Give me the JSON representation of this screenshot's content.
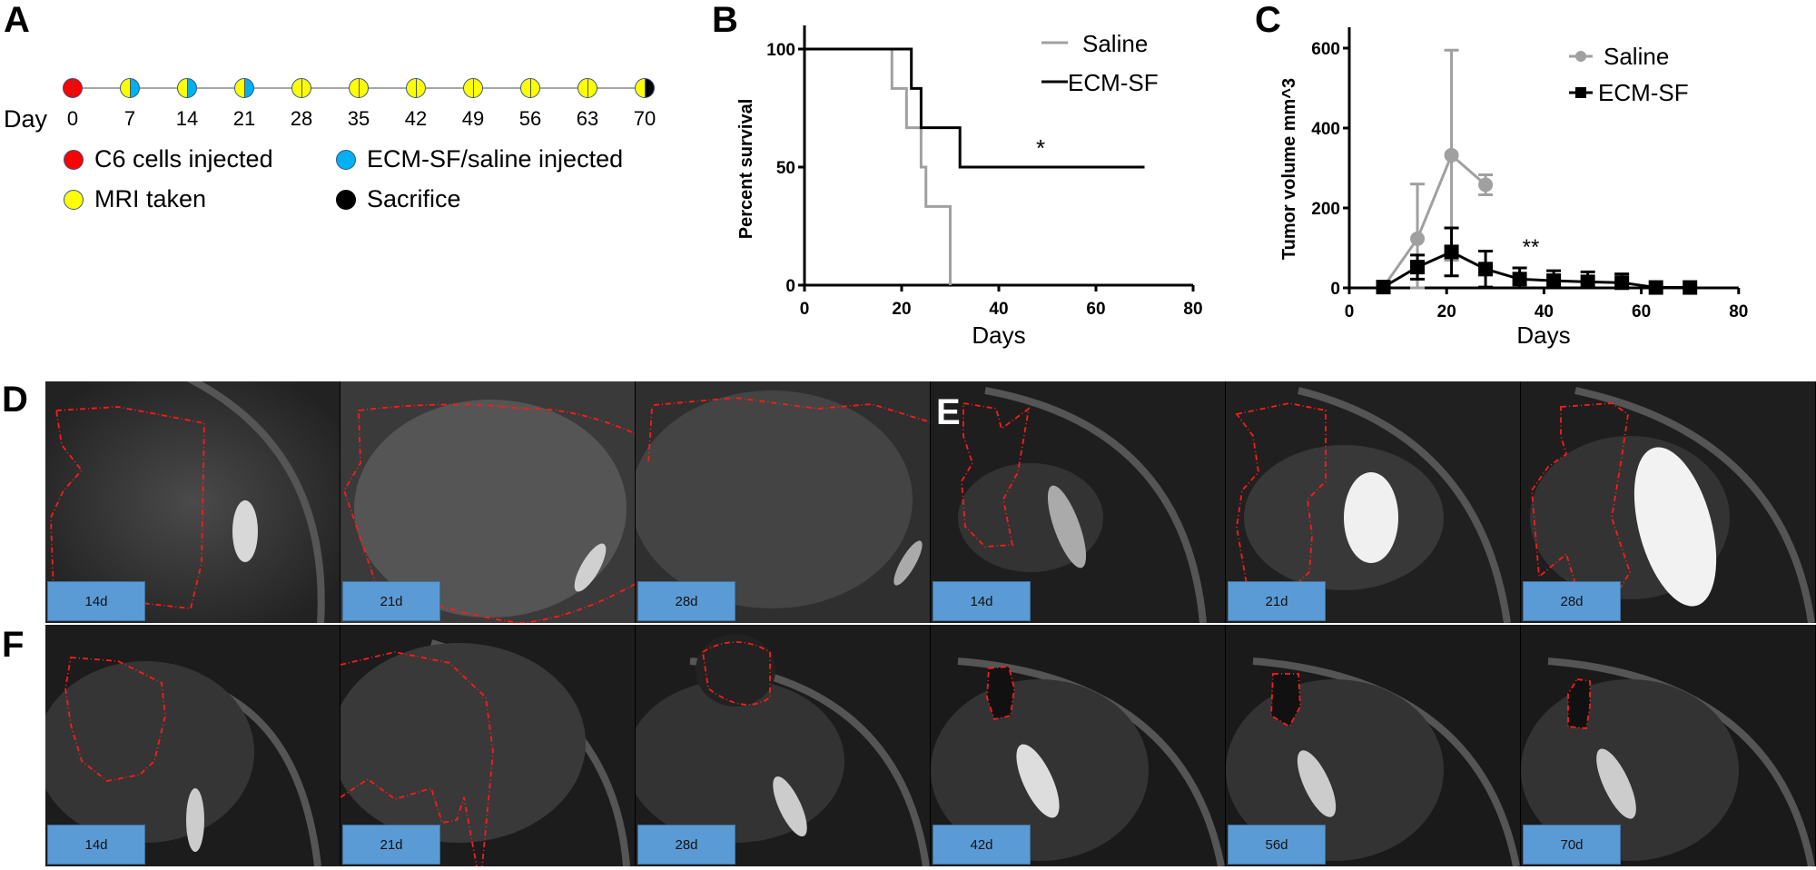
{
  "panels": {
    "A": {
      "label": "A",
      "day_word": "Day",
      "timeline": [
        {
          "day": "0",
          "left": "#ff0000",
          "right": "#ff0000"
        },
        {
          "day": "7",
          "left": "#ffff00",
          "right": "#00b0f0"
        },
        {
          "day": "14",
          "left": "#ffff00",
          "right": "#00b0f0"
        },
        {
          "day": "21",
          "left": "#ffff00",
          "right": "#00b0f0"
        },
        {
          "day": "28",
          "left": "#ffff00",
          "right": "#ffff00"
        },
        {
          "day": "35",
          "left": "#ffff00",
          "right": "#ffff00"
        },
        {
          "day": "42",
          "left": "#ffff00",
          "right": "#ffff00"
        },
        {
          "day": "49",
          "left": "#ffff00",
          "right": "#ffff00"
        },
        {
          "day": "56",
          "left": "#ffff00",
          "right": "#ffff00"
        },
        {
          "day": "63",
          "left": "#ffff00",
          "right": "#ffff00"
        },
        {
          "day": "70",
          "left": "#ffff00",
          "right": "#000000"
        }
      ],
      "legend": [
        {
          "label": "C6 cells injected",
          "color": "#ff0000"
        },
        {
          "label": "ECM-SF/saline injected",
          "color": "#00b0f0"
        },
        {
          "label": "MRI taken",
          "color": "#ffff00"
        },
        {
          "label": "Sacrifice",
          "color": "#000000"
        }
      ]
    },
    "B": {
      "label": "B"
    },
    "C": {
      "label": "C"
    },
    "D": {
      "label": "D",
      "tags": [
        "14d",
        "21d",
        "28d"
      ]
    },
    "E": {
      "label": "E",
      "tags": [
        "14d",
        "21d",
        "28d"
      ]
    },
    "F": {
      "label": "F",
      "tags": [
        "14d",
        "21d",
        "28d",
        "42d",
        "56d",
        "70d"
      ]
    }
  },
  "chart_data": [
    {
      "panel": "B",
      "type": "line",
      "subtype": "kaplan-meier step",
      "title": "",
      "xlabel": "Days",
      "ylabel": "Percent survival",
      "xlim": [
        0,
        80
      ],
      "ylim": [
        0,
        100
      ],
      "xticks": [
        0,
        20,
        40,
        60,
        80
      ],
      "yticks": [
        0,
        50,
        100
      ],
      "legend_position": "top-right",
      "annotation": "*",
      "series": [
        {
          "name": "Saline",
          "color": "#a0a0a0",
          "x": [
            0,
            18,
            21,
            24,
            25,
            30
          ],
          "y": [
            100,
            83.3,
            66.7,
            50,
            33.3,
            0
          ]
        },
        {
          "name": "ECM-SF",
          "color": "#000000",
          "x": [
            0,
            22,
            24,
            32,
            70
          ],
          "y": [
            100,
            83.3,
            66.7,
            50,
            50
          ]
        }
      ]
    },
    {
      "panel": "C",
      "type": "line",
      "title": "",
      "xlabel": "Days",
      "ylabel": "Tumor volume mm^3",
      "xlim": [
        0,
        80
      ],
      "ylim": [
        0,
        650
      ],
      "xticks": [
        0,
        20,
        40,
        60,
        80
      ],
      "yticks": [
        0,
        200,
        400,
        600
      ],
      "legend_position": "top-right",
      "annotation": "**",
      "series": [
        {
          "name": "Saline",
          "color": "#a0a0a0",
          "marker": "circle",
          "x": [
            7,
            14,
            21,
            28
          ],
          "y": [
            2,
            123,
            332,
            258
          ],
          "err": [
            2,
            137,
            263,
            25
          ]
        },
        {
          "name": "ECM-SF",
          "color": "#000000",
          "marker": "square",
          "x": [
            7,
            14,
            21,
            28,
            35,
            42,
            49,
            56,
            63,
            70
          ],
          "y": [
            2,
            52,
            90,
            47,
            22,
            18,
            15,
            13,
            1,
            1
          ],
          "err": [
            2,
            30,
            60,
            45,
            28,
            25,
            25,
            22,
            1,
            1
          ]
        }
      ]
    }
  ],
  "axis_text": {
    "b_ticks_x": [
      "0",
      "20",
      "40",
      "60",
      "80"
    ],
    "b_ticks_y": [
      "0",
      "50",
      "100"
    ],
    "c_ticks_x": [
      "0",
      "20",
      "40",
      "60",
      "80"
    ],
    "c_ticks_y": [
      "0",
      "200",
      "400",
      "600"
    ],
    "b_xlabel": "Days",
    "b_ylabel": "Percent survival",
    "c_xlabel": "Days",
    "c_ylabel": "Tumor volume mm^3",
    "b_legend_saline": "Saline",
    "b_legend_ecm": "ECM-SF",
    "c_legend_saline": "Saline",
    "c_legend_ecm": "ECM-SF",
    "b_star": "*",
    "c_star": "**"
  }
}
